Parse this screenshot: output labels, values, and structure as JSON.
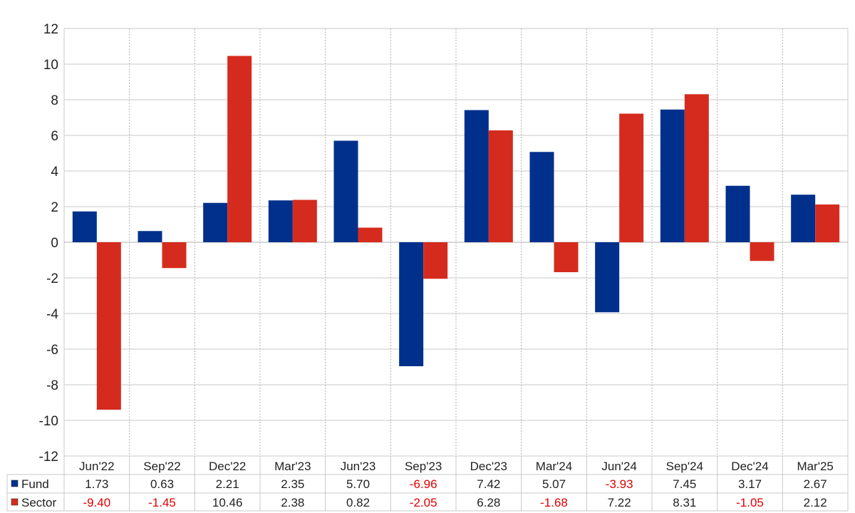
{
  "chart_data": {
    "type": "bar",
    "categories": [
      "Jun'22",
      "Sep'22",
      "Dec'22",
      "Mar'23",
      "Jun'23",
      "Sep'23",
      "Dec'23",
      "Mar'24",
      "Jun'24",
      "Sep'24",
      "Dec'24",
      "Mar'25"
    ],
    "series": [
      {
        "name": "Fund",
        "color": "#00308c",
        "values": [
          1.73,
          0.63,
          2.21,
          2.35,
          5.7,
          -6.96,
          7.42,
          5.07,
          -3.93,
          7.45,
          3.17,
          2.67
        ],
        "labels": [
          "1.73",
          "0.63",
          "2.21",
          "2.35",
          "5.70",
          "-6.96",
          "7.42",
          "5.07",
          "-3.93",
          "7.45",
          "3.17",
          "2.67"
        ]
      },
      {
        "name": "Sector",
        "color": "#d52b1e",
        "values": [
          -9.4,
          -1.45,
          10.46,
          2.38,
          0.82,
          -2.05,
          6.28,
          -1.68,
          7.22,
          8.31,
          -1.05,
          2.12
        ],
        "labels": [
          "-9.40",
          "-1.45",
          "10.46",
          "2.38",
          "0.82",
          "-2.05",
          "6.28",
          "-1.68",
          "7.22",
          "8.31",
          "-1.05",
          "2.12"
        ]
      }
    ],
    "ylim": [
      -12,
      12
    ],
    "yticks": [
      12,
      10,
      8,
      6,
      4,
      2,
      0,
      -2,
      -4,
      -6,
      -8,
      -10,
      -12
    ],
    "ytick_labels": [
      "12",
      "10",
      "8",
      "6",
      "4",
      "2",
      "0",
      "-2",
      "-4",
      "-6",
      "-8",
      "-10",
      "-12"
    ],
    "grid": true,
    "negative_label_color": "#e00000",
    "positive_label_color": "#222222",
    "data_table": true,
    "legend_placement": "data-table-left"
  }
}
